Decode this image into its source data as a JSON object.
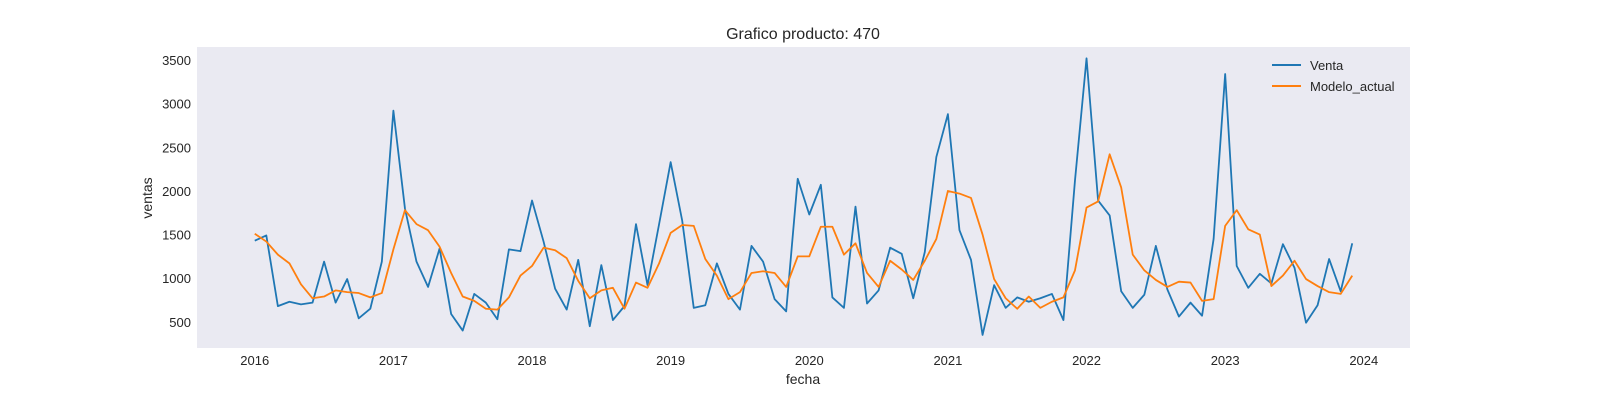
{
  "chart_data": {
    "type": "line",
    "title": "Grafico producto: 470",
    "xlabel": "fecha",
    "ylabel": "ventas",
    "xlim": [
      "2015-08",
      "2024-05"
    ],
    "ylim": [
      200,
      3650
    ],
    "grid": false,
    "legend_position": "top-right",
    "x_ticks": [
      "2016",
      "2017",
      "2018",
      "2019",
      "2020",
      "2021",
      "2022",
      "2023",
      "2024"
    ],
    "y_ticks": [
      500,
      1000,
      1500,
      2000,
      2500,
      3000,
      3500
    ],
    "x": [
      "2016-01",
      "2016-02",
      "2016-03",
      "2016-04",
      "2016-05",
      "2016-06",
      "2016-07",
      "2016-08",
      "2016-09",
      "2016-10",
      "2016-11",
      "2016-12",
      "2017-01",
      "2017-02",
      "2017-03",
      "2017-04",
      "2017-05",
      "2017-06",
      "2017-07",
      "2017-08",
      "2017-09",
      "2017-10",
      "2017-11",
      "2017-12",
      "2018-01",
      "2018-02",
      "2018-03",
      "2018-04",
      "2018-05",
      "2018-06",
      "2018-07",
      "2018-08",
      "2018-09",
      "2018-10",
      "2018-11",
      "2018-12",
      "2019-01",
      "2019-02",
      "2019-03",
      "2019-04",
      "2019-05",
      "2019-06",
      "2019-07",
      "2019-08",
      "2019-09",
      "2019-10",
      "2019-11",
      "2019-12",
      "2020-01",
      "2020-02",
      "2020-03",
      "2020-04",
      "2020-05",
      "2020-06",
      "2020-07",
      "2020-08",
      "2020-09",
      "2020-10",
      "2020-11",
      "2020-12",
      "2021-01",
      "2021-02",
      "2021-03",
      "2021-04",
      "2021-05",
      "2021-06",
      "2021-07",
      "2021-08",
      "2021-09",
      "2021-10",
      "2021-11",
      "2021-12",
      "2022-01",
      "2022-02",
      "2022-03",
      "2022-04",
      "2022-05",
      "2022-06",
      "2022-07",
      "2022-08",
      "2022-09",
      "2022-10",
      "2022-11",
      "2022-12",
      "2023-01",
      "2023-02",
      "2023-03",
      "2023-04",
      "2023-05",
      "2023-06",
      "2023-07",
      "2023-08",
      "2023-09",
      "2023-10",
      "2023-11",
      "2023-12"
    ],
    "series": [
      {
        "name": "Venta",
        "color": "#1f77b4",
        "values": [
          1430,
          1490,
          680,
          730,
          700,
          720,
          1190,
          720,
          990,
          540,
          650,
          1190,
          2920,
          1800,
          1190,
          900,
          1340,
          590,
          400,
          820,
          720,
          530,
          1330,
          1310,
          1890,
          1420,
          880,
          640,
          1210,
          450,
          1150,
          520,
          680,
          1620,
          920,
          1620,
          2330,
          1660,
          660,
          690,
          1170,
          820,
          640,
          1370,
          1190,
          760,
          620,
          2140,
          1730,
          2070,
          780,
          660,
          1820,
          710,
          860,
          1350,
          1280,
          770,
          1300,
          2390,
          2880,
          1550,
          1210,
          350,
          920,
          660,
          780,
          730,
          770,
          820,
          520,
          2120,
          3520,
          1890,
          1720,
          850,
          660,
          810,
          1370,
          870,
          560,
          720,
          570,
          1450,
          3340,
          1140,
          890,
          1050,
          940,
          1390,
          1120,
          490,
          690,
          1220,
          850,
          1400
        ]
      },
      {
        "name": "Modelo_actual",
        "color": "#ff7f0e",
        "values": [
          1510,
          1420,
          1270,
          1170,
          930,
          770,
          790,
          860,
          840,
          830,
          780,
          830,
          1330,
          1780,
          1620,
          1550,
          1360,
          1060,
          790,
          740,
          650,
          640,
          780,
          1030,
          1140,
          1350,
          1320,
          1230,
          970,
          770,
          860,
          890,
          650,
          950,
          890,
          1170,
          1520,
          1610,
          1600,
          1220,
          1030,
          760,
          840,
          1060,
          1080,
          1060,
          900,
          1250,
          1250,
          1590,
          1590,
          1270,
          1400,
          1060,
          900,
          1200,
          1100,
          980,
          1200,
          1450,
          2000,
          1970,
          1920,
          1500,
          990,
          770,
          650,
          790,
          660,
          730,
          780,
          1090,
          1810,
          1880,
          2420,
          2040,
          1270,
          1090,
          980,
          900,
          960,
          950,
          740,
          760,
          1600,
          1780,
          1560,
          1500,
          910,
          1030,
          1200,
          990,
          910,
          840,
          820,
          1030
        ]
      }
    ]
  }
}
